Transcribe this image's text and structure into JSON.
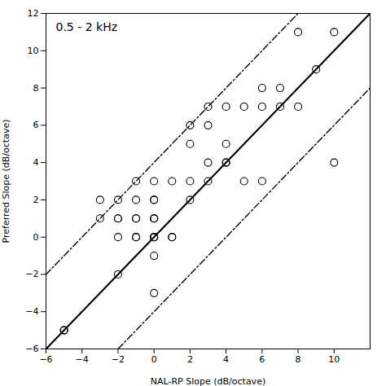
{
  "chart_data": {
    "type": "scatter",
    "title": "0.5 - 2 kHz",
    "x_label": "NAL-RP Slope (dB/octave)",
    "y_label": "Preferred Slope (dB/octave)",
    "xlim": [
      -6,
      12
    ],
    "ylim": [
      -6,
      12
    ],
    "xticks": [
      -6,
      -4,
      -2,
      0,
      2,
      4,
      6,
      8,
      10
    ],
    "yticks": [
      -6,
      -4,
      -2,
      0,
      2,
      4,
      6,
      8,
      10,
      12
    ],
    "grid": false,
    "marker": "circle",
    "color": "black",
    "x": [
      -5,
      -5,
      -3,
      -3,
      -2,
      -2,
      -2,
      -2,
      -2,
      -1,
      -1,
      -1,
      -1,
      -1,
      -1,
      0,
      0,
      0,
      0,
      0,
      0,
      0,
      0,
      0,
      0,
      1,
      1,
      0,
      0,
      1,
      2,
      2,
      2,
      3,
      3,
      3,
      4,
      4,
      4,
      5,
      5,
      6,
      6,
      6,
      7,
      7,
      8,
      8,
      9,
      10,
      10,
      2,
      3,
      4
    ],
    "values": [
      -5,
      -5,
      1,
      2,
      0,
      1,
      2,
      -2,
      1,
      0,
      0,
      1,
      2,
      1,
      3,
      0,
      0,
      0,
      0,
      1,
      1,
      2,
      3,
      -1,
      -3,
      0,
      0,
      1,
      2,
      3,
      2,
      3,
      5,
      3,
      4,
      6,
      4,
      5,
      7,
      3,
      7,
      7,
      8,
      3,
      7,
      8,
      7,
      11,
      9,
      11,
      4,
      6,
      7,
      4
    ],
    "reference_lines": [
      {
        "slope": 1,
        "intercept": 0,
        "line_style": "solid",
        "color": "black"
      },
      {
        "slope": 1,
        "intercept": 4,
        "line_style": "dashdot",
        "color": "black"
      },
      {
        "slope": 1,
        "intercept": -4,
        "line_style": "dashdot",
        "color": "black"
      }
    ]
  }
}
